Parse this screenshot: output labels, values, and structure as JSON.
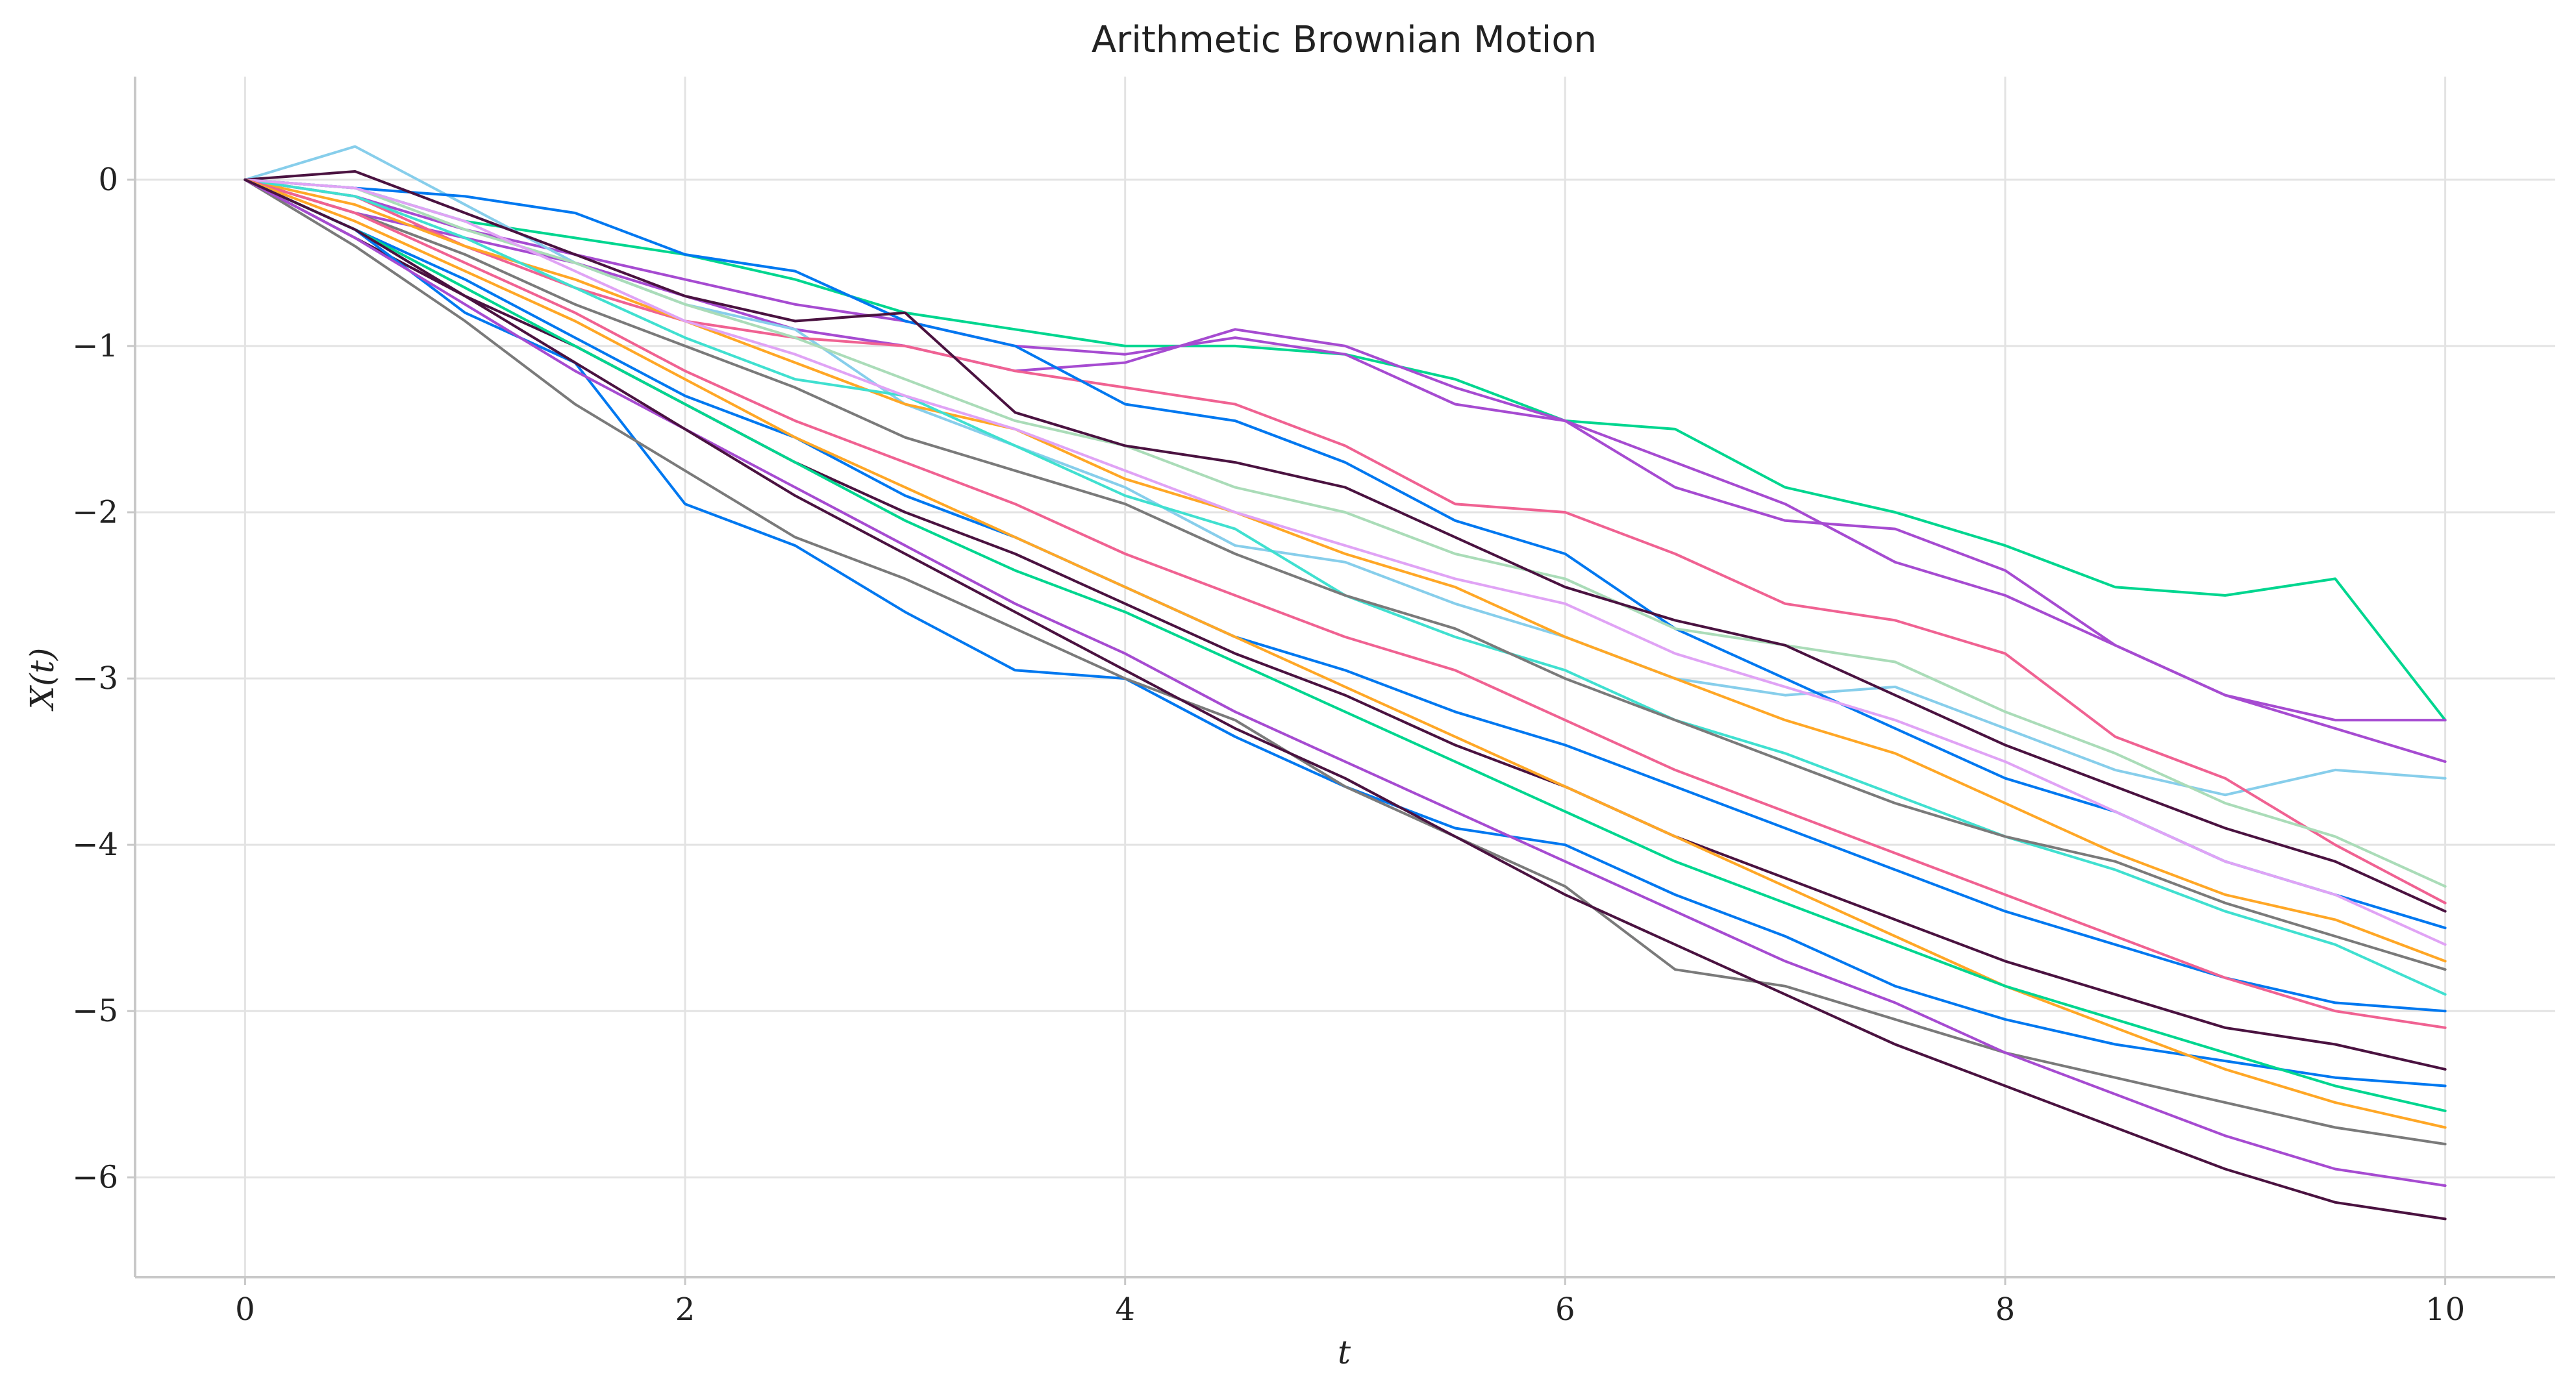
{
  "chart_data": {
    "type": "line",
    "title": "Arithmetic Brownian Motion",
    "xlabel": "t",
    "ylabel": "X(t)",
    "xlim": [
      -0.5,
      10.5
    ],
    "ylim": [
      -6.6,
      0.62
    ],
    "xticks": [
      0,
      2,
      4,
      6,
      8,
      10
    ],
    "xtick_labels": [
      "0",
      "2",
      "4",
      "6",
      "8",
      "10"
    ],
    "yticks": [
      0,
      -1,
      -2,
      -3,
      -4,
      -5,
      -6
    ],
    "ytick_labels": [
      "0",
      "−1",
      "−2",
      "−3",
      "−4",
      "−5",
      "−6"
    ],
    "grid": true,
    "legend": "none",
    "x": [
      0,
      0.5,
      1,
      1.5,
      2,
      2.5,
      3,
      3.5,
      4,
      4.5,
      5,
      5.5,
      6,
      6.5,
      7,
      7.5,
      8,
      8.5,
      9,
      9.5,
      10
    ],
    "series": [
      {
        "color": "#00d68f",
        "values": [
          0,
          -0.05,
          -0.25,
          -0.35,
          -0.45,
          -0.6,
          -0.8,
          -0.9,
          -1.0,
          -1.0,
          -1.05,
          -1.2,
          -1.45,
          -1.5,
          -1.85,
          -2.0,
          -2.2,
          -2.45,
          -2.5,
          -2.4,
          -3.25
        ]
      },
      {
        "color": "#a64bd1",
        "values": [
          0,
          -0.1,
          -0.3,
          -0.45,
          -0.6,
          -0.75,
          -0.85,
          -1.0,
          -1.05,
          -0.95,
          -1.05,
          -1.35,
          -1.45,
          -1.7,
          -1.95,
          -2.3,
          -2.5,
          -2.8,
          -3.1,
          -3.25,
          -3.25
        ]
      },
      {
        "color": "#a64bd1",
        "values": [
          0,
          -0.2,
          -0.35,
          -0.5,
          -0.7,
          -0.9,
          -1.0,
          -1.15,
          -1.1,
          -0.9,
          -1.0,
          -1.25,
          -1.45,
          -1.85,
          -2.05,
          -2.1,
          -2.35,
          -2.8,
          -3.1,
          -3.3,
          -3.5
        ]
      },
      {
        "color": "#87ceeb",
        "values": [
          0,
          0.2,
          -0.15,
          -0.5,
          -0.75,
          -0.9,
          -1.35,
          -1.6,
          -1.85,
          -2.2,
          -2.3,
          -2.55,
          -2.75,
          -3.0,
          -3.1,
          -3.05,
          -3.3,
          -3.55,
          -3.7,
          -3.55,
          -3.6
        ]
      },
      {
        "color": "#f06292",
        "values": [
          0,
          -0.1,
          -0.4,
          -0.65,
          -0.85,
          -0.95,
          -1.0,
          -1.15,
          -1.25,
          -1.35,
          -1.6,
          -1.95,
          -2.0,
          -2.25,
          -2.55,
          -2.65,
          -2.85,
          -3.35,
          -3.6,
          -4.0,
          -4.35
        ]
      },
      {
        "color": "#0078f0",
        "values": [
          0,
          -0.05,
          -0.1,
          -0.2,
          -0.45,
          -0.55,
          -0.85,
          -1.0,
          -1.35,
          -1.45,
          -1.7,
          -2.05,
          -2.25,
          -2.7,
          -3.0,
          -3.3,
          -3.6,
          -3.8,
          -4.1,
          -4.3,
          -4.5
        ]
      },
      {
        "color": "#aadcb8",
        "values": [
          0,
          -0.05,
          -0.3,
          -0.5,
          -0.75,
          -0.95,
          -1.2,
          -1.45,
          -1.6,
          -1.85,
          -2.0,
          -2.25,
          -2.4,
          -2.7,
          -2.8,
          -2.9,
          -3.2,
          -3.45,
          -3.75,
          -3.95,
          -4.25
        ]
      },
      {
        "color": "#4a1240",
        "values": [
          0,
          0.05,
          -0.2,
          -0.45,
          -0.7,
          -0.85,
          -0.8,
          -1.4,
          -1.6,
          -1.7,
          -1.85,
          -2.15,
          -2.45,
          -2.65,
          -2.8,
          -3.1,
          -3.4,
          -3.65,
          -3.9,
          -4.1,
          -4.4
        ]
      },
      {
        "color": "#ffa726",
        "values": [
          0,
          -0.15,
          -0.4,
          -0.6,
          -0.85,
          -1.1,
          -1.35,
          -1.5,
          -1.8,
          -2.0,
          -2.25,
          -2.45,
          -2.75,
          -3.0,
          -3.25,
          -3.45,
          -3.75,
          -4.05,
          -4.3,
          -4.45,
          -4.7
        ]
      },
      {
        "color": "#40e0d0",
        "values": [
          0,
          -0.1,
          -0.35,
          -0.65,
          -0.95,
          -1.2,
          -1.3,
          -1.6,
          -1.9,
          -2.1,
          -2.5,
          -2.75,
          -2.95,
          -3.25,
          -3.45,
          -3.7,
          -3.95,
          -4.15,
          -4.4,
          -4.6,
          -4.9
        ]
      },
      {
        "color": "#e0a3f5",
        "values": [
          0,
          -0.05,
          -0.25,
          -0.55,
          -0.85,
          -1.05,
          -1.3,
          -1.5,
          -1.75,
          -2.0,
          -2.2,
          -2.4,
          -2.55,
          -2.85,
          -3.05,
          -3.25,
          -3.5,
          -3.8,
          -4.1,
          -4.3,
          -4.6
        ]
      },
      {
        "color": "#7a7a7a",
        "values": [
          0,
          -0.2,
          -0.45,
          -0.75,
          -1.0,
          -1.25,
          -1.55,
          -1.75,
          -1.95,
          -2.25,
          -2.5,
          -2.7,
          -3.0,
          -3.25,
          -3.5,
          -3.75,
          -3.95,
          -4.1,
          -4.35,
          -4.55,
          -4.75
        ]
      },
      {
        "color": "#0078f0",
        "values": [
          0,
          -0.3,
          -0.6,
          -0.95,
          -1.3,
          -1.55,
          -1.9,
          -2.15,
          -2.45,
          -2.75,
          -2.95,
          -3.2,
          -3.4,
          -3.65,
          -3.9,
          -4.15,
          -4.4,
          -4.6,
          -4.8,
          -4.95,
          -5.0
        ]
      },
      {
        "color": "#f06292",
        "values": [
          0,
          -0.2,
          -0.5,
          -0.8,
          -1.15,
          -1.45,
          -1.7,
          -1.95,
          -2.25,
          -2.5,
          -2.75,
          -2.95,
          -3.25,
          -3.55,
          -3.8,
          -4.05,
          -4.3,
          -4.55,
          -4.8,
          -5.0,
          -5.1
        ]
      },
      {
        "color": "#4a1240",
        "values": [
          0,
          -0.35,
          -0.7,
          -1.0,
          -1.35,
          -1.7,
          -2.0,
          -2.25,
          -2.55,
          -2.85,
          -3.1,
          -3.4,
          -3.65,
          -3.95,
          -4.2,
          -4.45,
          -4.7,
          -4.9,
          -5.1,
          -5.2,
          -5.35
        ]
      },
      {
        "color": "#0078f0",
        "values": [
          0,
          -0.3,
          -0.8,
          -1.1,
          -1.95,
          -2.2,
          -2.6,
          -2.95,
          -3.0,
          -3.35,
          -3.65,
          -3.9,
          -4.0,
          -4.3,
          -4.55,
          -4.85,
          -5.05,
          -5.2,
          -5.3,
          -5.4,
          -5.45
        ]
      },
      {
        "color": "#ffa726",
        "values": [
          0,
          -0.25,
          -0.55,
          -0.85,
          -1.2,
          -1.55,
          -1.85,
          -2.15,
          -2.45,
          -2.75,
          -3.05,
          -3.35,
          -3.65,
          -3.95,
          -4.25,
          -4.55,
          -4.85,
          -5.1,
          -5.35,
          -5.55,
          -5.7
        ]
      },
      {
        "color": "#00d68f",
        "values": [
          0,
          -0.3,
          -0.65,
          -1.0,
          -1.35,
          -1.7,
          -2.05,
          -2.35,
          -2.6,
          -2.9,
          -3.2,
          -3.5,
          -3.8,
          -4.1,
          -4.35,
          -4.6,
          -4.85,
          -5.05,
          -5.25,
          -5.45,
          -5.6
        ]
      },
      {
        "color": "#7a7a7a",
        "values": [
          0,
          -0.4,
          -0.85,
          -1.35,
          -1.75,
          -2.15,
          -2.4,
          -2.7,
          -3.0,
          -3.25,
          -3.65,
          -3.95,
          -4.25,
          -4.75,
          -4.85,
          -5.05,
          -5.25,
          -5.4,
          -5.55,
          -5.7,
          -5.8
        ]
      },
      {
        "color": "#a64bd1",
        "values": [
          0,
          -0.35,
          -0.75,
          -1.15,
          -1.5,
          -1.85,
          -2.2,
          -2.55,
          -2.85,
          -3.2,
          -3.5,
          -3.8,
          -4.1,
          -4.4,
          -4.7,
          -4.95,
          -5.25,
          -5.5,
          -5.75,
          -5.95,
          -6.05
        ]
      },
      {
        "color": "#4a1240",
        "values": [
          0,
          -0.3,
          -0.7,
          -1.1,
          -1.5,
          -1.9,
          -2.25,
          -2.6,
          -2.95,
          -3.3,
          -3.6,
          -3.95,
          -4.3,
          -4.6,
          -4.9,
          -5.2,
          -5.45,
          -5.7,
          -5.95,
          -6.15,
          -6.25
        ]
      }
    ]
  }
}
